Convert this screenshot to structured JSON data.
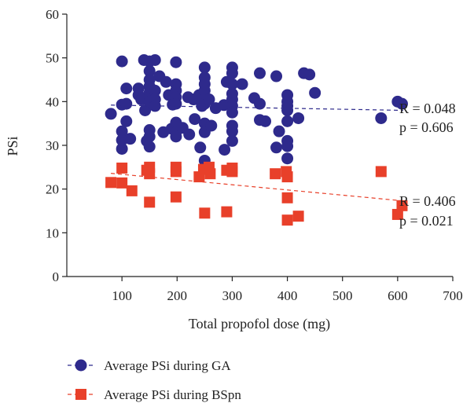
{
  "chart_data": {
    "type": "scatter",
    "xlabel": "Total propofol dose (mg)",
    "ylabel": "PSi",
    "xlim": [
      0,
      700
    ],
    "ylim": [
      0,
      60
    ],
    "xticks": [
      100,
      200,
      300,
      400,
      500,
      600,
      700
    ],
    "yticks": [
      0,
      10,
      20,
      30,
      40,
      50,
      60
    ],
    "grid": false,
    "legend_position": "bottom",
    "series": [
      {
        "name": "Average PSi during GA",
        "color": "#2e2a8c",
        "marker": "circle",
        "trendline": {
          "style": "dashed",
          "x": [
            80,
            610
          ],
          "y": [
            39.2,
            38.0
          ]
        },
        "points": [
          [
            80,
            37.2
          ],
          [
            100,
            49.2
          ],
          [
            100,
            39.3
          ],
          [
            100,
            33.2
          ],
          [
            100,
            31.2
          ],
          [
            100,
            29.2
          ],
          [
            108,
            43.0
          ],
          [
            108,
            39.5
          ],
          [
            108,
            35.5
          ],
          [
            115,
            31.5
          ],
          [
            130,
            43.0
          ],
          [
            130,
            41.5
          ],
          [
            135,
            40.5
          ],
          [
            140,
            49.5
          ],
          [
            142,
            38.0
          ],
          [
            145,
            31.0
          ],
          [
            150,
            49.2
          ],
          [
            150,
            47.0
          ],
          [
            150,
            45.0
          ],
          [
            150,
            43.5
          ],
          [
            150,
            42.0
          ],
          [
            150,
            41.0
          ],
          [
            150,
            40.0
          ],
          [
            150,
            33.5
          ],
          [
            150,
            32.0
          ],
          [
            150,
            29.7
          ],
          [
            160,
            49.5
          ],
          [
            160,
            42.5
          ],
          [
            160,
            40.5
          ],
          [
            160,
            39.0
          ],
          [
            168,
            45.8
          ],
          [
            175,
            33.0
          ],
          [
            180,
            44.5
          ],
          [
            185,
            41.5
          ],
          [
            190,
            33.8
          ],
          [
            192,
            39.3
          ],
          [
            198,
            49.0
          ],
          [
            198,
            44.0
          ],
          [
            198,
            42.5
          ],
          [
            198,
            41.0
          ],
          [
            198,
            39.5
          ],
          [
            198,
            35.2
          ],
          [
            198,
            33.0
          ],
          [
            198,
            32.0
          ],
          [
            210,
            34.0
          ],
          [
            220,
            41.0
          ],
          [
            222,
            32.5
          ],
          [
            230,
            40.5
          ],
          [
            232,
            36.0
          ],
          [
            240,
            41.5
          ],
          [
            242,
            29.5
          ],
          [
            245,
            39.0
          ],
          [
            250,
            47.8
          ],
          [
            250,
            45.5
          ],
          [
            250,
            44.0
          ],
          [
            250,
            42.5
          ],
          [
            250,
            40.5
          ],
          [
            250,
            39.5
          ],
          [
            250,
            35.0
          ],
          [
            250,
            33.0
          ],
          [
            250,
            26.5
          ],
          [
            258,
            40.5
          ],
          [
            262,
            34.5
          ],
          [
            270,
            38.5
          ],
          [
            285,
            39.2
          ],
          [
            286,
            29.0
          ],
          [
            290,
            44.5
          ],
          [
            300,
            47.8
          ],
          [
            300,
            46.5
          ],
          [
            300,
            44.0
          ],
          [
            300,
            41.8
          ],
          [
            300,
            40.5
          ],
          [
            300,
            39.0
          ],
          [
            300,
            37.5
          ],
          [
            300,
            34.5
          ],
          [
            300,
            33.2
          ],
          [
            300,
            31.0
          ],
          [
            318,
            44.0
          ],
          [
            340,
            40.8
          ],
          [
            350,
            46.5
          ],
          [
            350,
            39.5
          ],
          [
            350,
            35.8
          ],
          [
            360,
            35.5
          ],
          [
            380,
            45.8
          ],
          [
            380,
            29.5
          ],
          [
            385,
            33.2
          ],
          [
            400,
            41.5
          ],
          [
            400,
            40.0
          ],
          [
            400,
            39.0
          ],
          [
            400,
            38.0
          ],
          [
            400,
            35.5
          ],
          [
            400,
            31.0
          ],
          [
            400,
            29.8
          ],
          [
            400,
            27.0
          ],
          [
            420,
            36.2
          ],
          [
            430,
            46.5
          ],
          [
            440,
            46.2
          ],
          [
            450,
            42.0
          ],
          [
            570,
            36.2
          ],
          [
            600,
            40.0
          ],
          [
            608,
            39.5
          ]
        ]
      },
      {
        "name": "Average PSi during BSpn",
        "color": "#e8402a",
        "marker": "square",
        "trendline": {
          "style": "dashed",
          "x": [
            80,
            610
          ],
          "y": [
            23.6,
            17.3
          ]
        },
        "points": [
          [
            80,
            21.5
          ],
          [
            100,
            24.8
          ],
          [
            100,
            21.4
          ],
          [
            118,
            19.6
          ],
          [
            145,
            24.3
          ],
          [
            150,
            25.0
          ],
          [
            150,
            23.5
          ],
          [
            150,
            17.0
          ],
          [
            198,
            25.0
          ],
          [
            198,
            24.0
          ],
          [
            198,
            18.2
          ],
          [
            240,
            22.8
          ],
          [
            248,
            24.5
          ],
          [
            250,
            14.5
          ],
          [
            258,
            25.0
          ],
          [
            260,
            23.5
          ],
          [
            290,
            24.3
          ],
          [
            290,
            14.8
          ],
          [
            300,
            24.8
          ],
          [
            300,
            24.0
          ],
          [
            378,
            23.5
          ],
          [
            398,
            24.0
          ],
          [
            400,
            22.8
          ],
          [
            400,
            18.0
          ],
          [
            400,
            12.9
          ],
          [
            420,
            13.8
          ],
          [
            570,
            24.0
          ],
          [
            600,
            14.2
          ],
          [
            608,
            16.2
          ]
        ]
      }
    ],
    "annotations": [
      {
        "series": 0,
        "r_label": "R = 0.048",
        "p_label": "p = 0.606"
      },
      {
        "series": 1,
        "r_label": "R = 0.406",
        "p_label": "p = 0.021"
      }
    ]
  }
}
